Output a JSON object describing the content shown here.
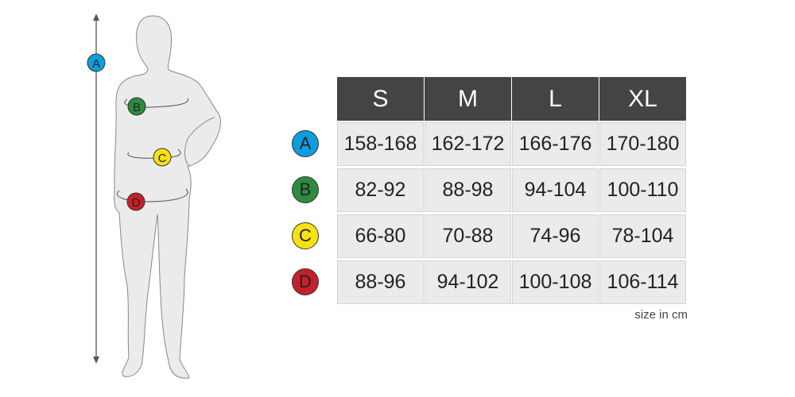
{
  "colors": {
    "A": "#0e9ddd",
    "B": "#2e8b3e",
    "C": "#f7e20f",
    "D": "#c4202a",
    "header_bg": "#444444",
    "cell_bg": "#ebebeb"
  },
  "sizes": [
    "S",
    "M",
    "L",
    "XL"
  ],
  "rows": [
    {
      "key": "A",
      "values": [
        "158-168",
        "162-172",
        "166-176",
        "170-180"
      ]
    },
    {
      "key": "B",
      "values": [
        "82-92",
        "88-98",
        "94-104",
        "100-110"
      ]
    },
    {
      "key": "C",
      "values": [
        "66-80",
        "70-88",
        "74-96",
        "78-104"
      ]
    },
    {
      "key": "D",
      "values": [
        "88-96",
        "94-102",
        "100-108",
        "106-114"
      ]
    }
  ],
  "figure_labels": {
    "A": "A",
    "B": "B",
    "C": "C",
    "D": "D"
  },
  "note": "size in cm"
}
